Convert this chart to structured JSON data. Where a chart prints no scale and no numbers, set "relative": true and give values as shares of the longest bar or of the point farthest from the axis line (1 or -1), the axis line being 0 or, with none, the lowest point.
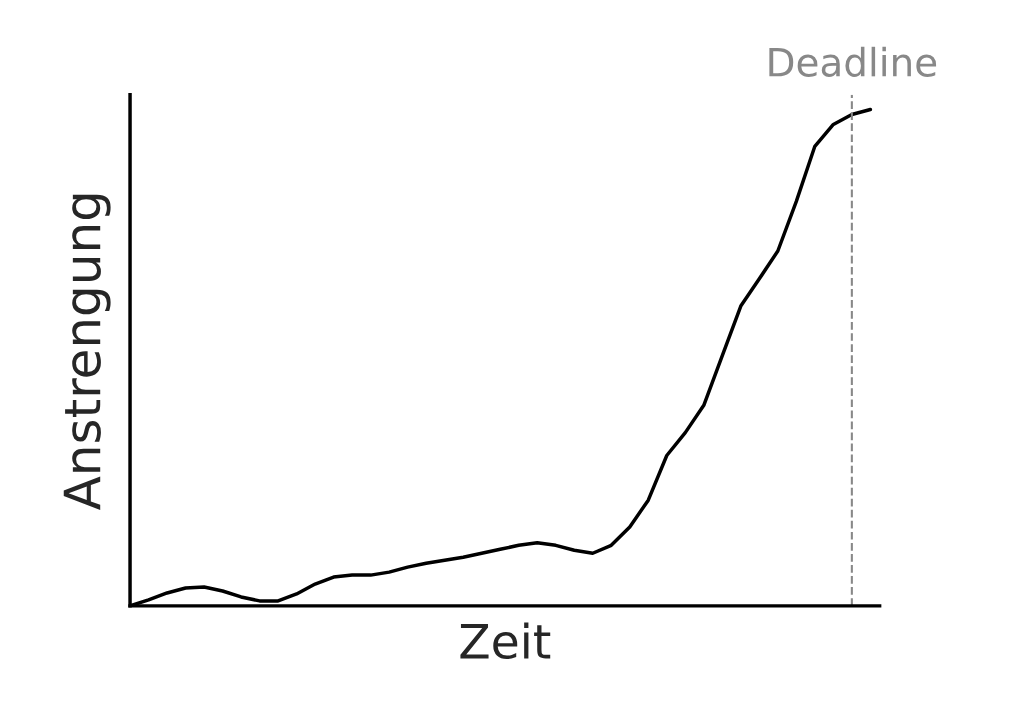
{
  "chart_data": {
    "type": "line",
    "relative": true,
    "xlabel": "Zeit",
    "ylabel": "Anstrengung",
    "categories": [
      null,
      null,
      null,
      null,
      null,
      null,
      null,
      null,
      null,
      null,
      null,
      null,
      null,
      null,
      null,
      null,
      null,
      null,
      null,
      null,
      null,
      null,
      null,
      null,
      null,
      null,
      null,
      null,
      null,
      null,
      null,
      null,
      null,
      null,
      null,
      null,
      null,
      null,
      null,
      null,
      null
    ],
    "series": [
      {
        "color": "#000000",
        "values": [
          0,
          0.012,
          0.026,
          0.036,
          0.038,
          0.03,
          0.018,
          0.01,
          0.01,
          0.024,
          0.044,
          0.058,
          0.062,
          0.062,
          0.068,
          0.078,
          0.086,
          0.092,
          0.098,
          0.106,
          0.114,
          0.122,
          0.127,
          0.122,
          0.112,
          0.106,
          0.122,
          0.159,
          0.213,
          0.303,
          0.349,
          0.404,
          0.504,
          0.604,
          0.659,
          0.715,
          0.815,
          0.926,
          0.97,
          0.99,
          1
        ]
      }
    ],
    "annotations": [
      "Deadline"
    ],
    "legend": false,
    "marker": "none",
    "line_style": "solid",
    "tick_labels": false
  }
}
